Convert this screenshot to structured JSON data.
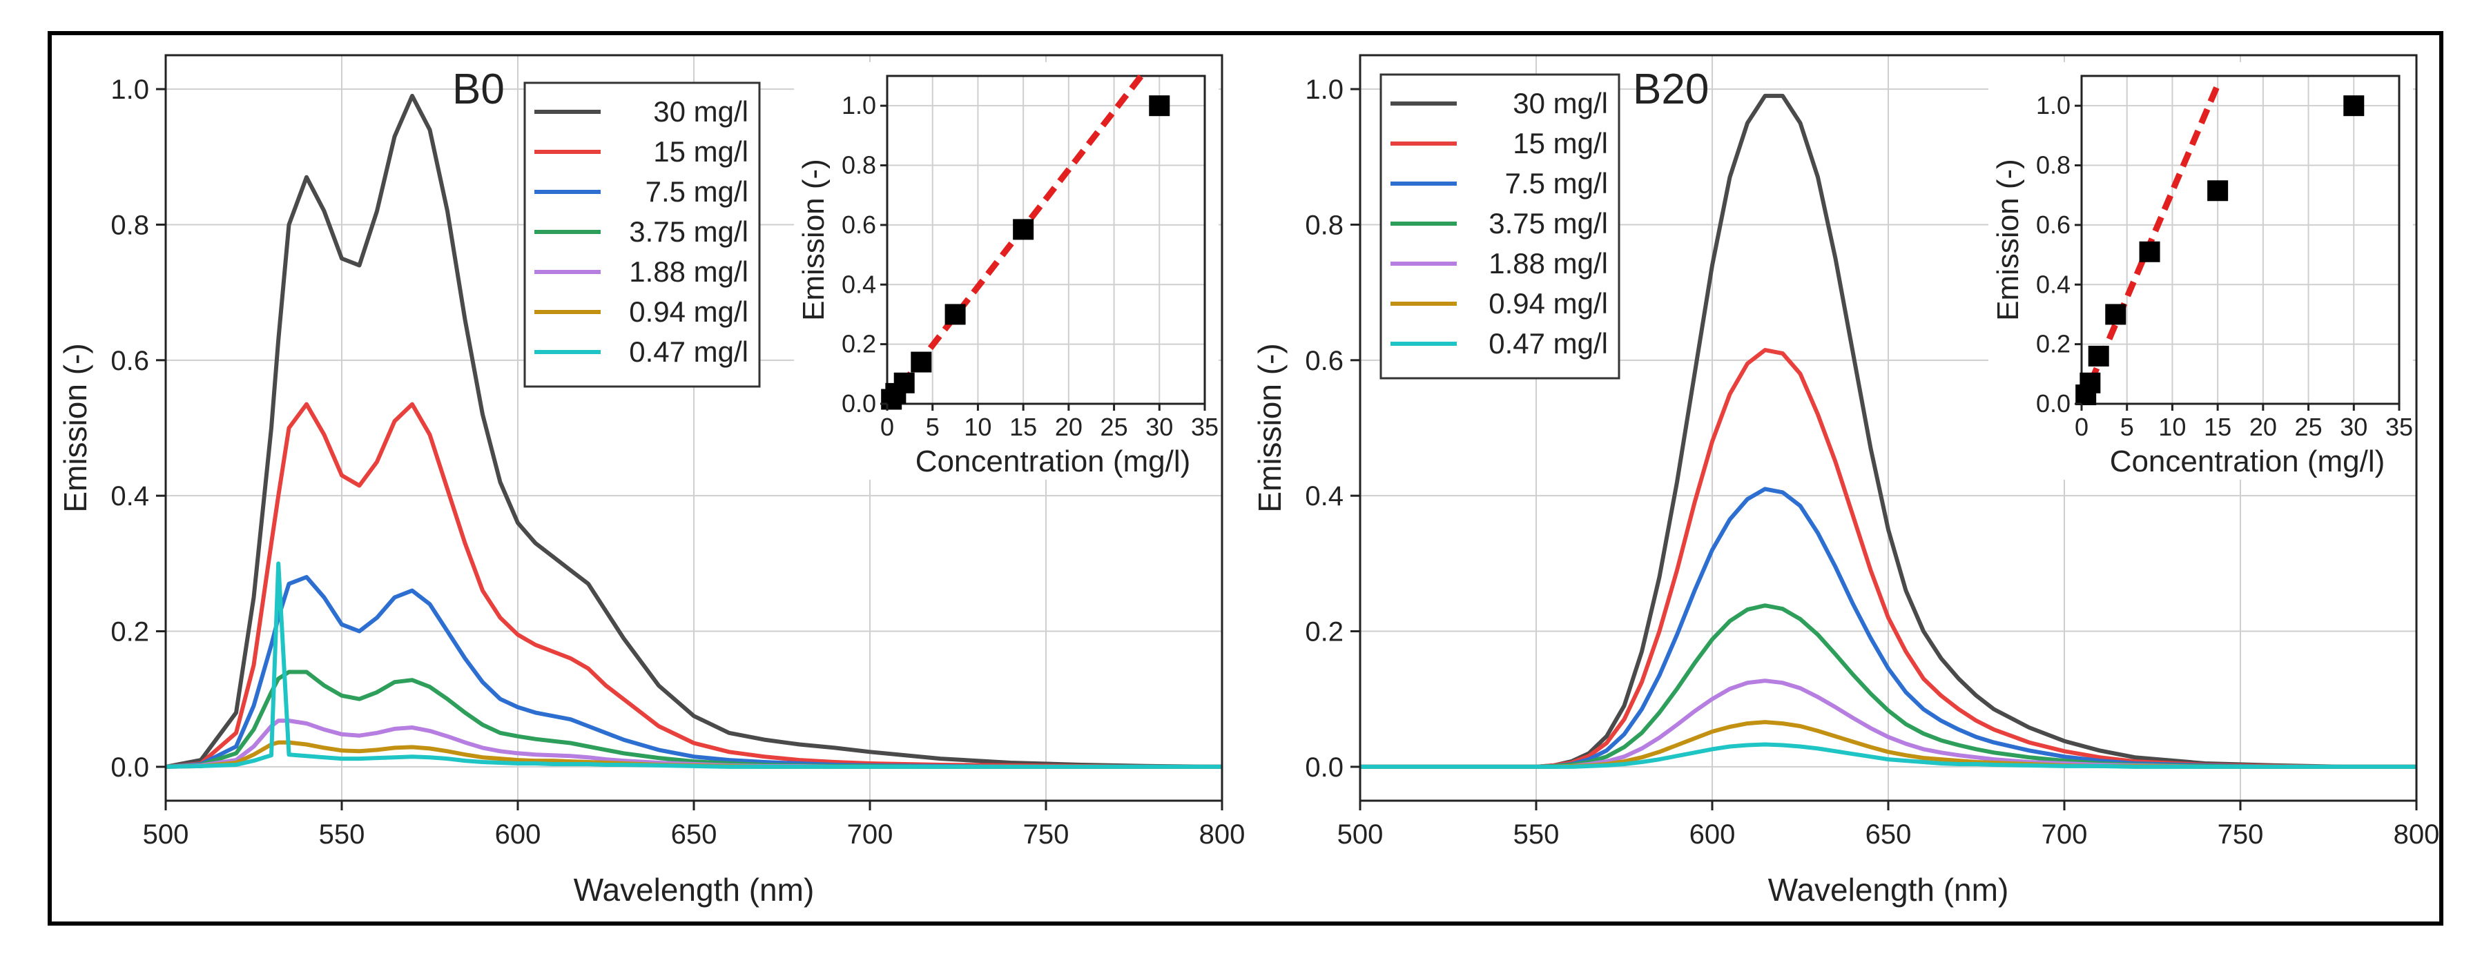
{
  "figure": {
    "colors": {
      "30 mg/l": "#4a4a4a",
      "15 mg/l": "#e8403c",
      "7.5 mg/l": "#2d6fd0",
      "3.75 mg/l": "#2e9e5b",
      "1.88 mg/l": "#b57ee0",
      "0.94 mg/l": "#c39112",
      "0.47 mg/l": "#1fc4c4",
      "fit": "#e32020",
      "grid": "#cfcfcf"
    }
  },
  "chart_data": [
    {
      "id": "B0",
      "type": "line",
      "panel_label": "B0",
      "title": "",
      "xlabel": "Wavelength (nm)",
      "ylabel": "Emission (-)",
      "xlim": [
        500,
        800
      ],
      "ylim": [
        -0.05,
        1.05
      ],
      "xticks": [
        500,
        550,
        600,
        650,
        700,
        750,
        800
      ],
      "yticks": [
        0.0,
        0.2,
        0.4,
        0.6,
        0.8,
        1.0
      ],
      "ytick_labels": [
        "0.0",
        "0.2",
        "0.4",
        "0.6",
        "0.8",
        "1.0"
      ],
      "grid": true,
      "legend": "top-center",
      "x": [
        500,
        510,
        520,
        525,
        530,
        532,
        535,
        540,
        545,
        550,
        555,
        560,
        565,
        570,
        575,
        580,
        585,
        590,
        595,
        600,
        605,
        610,
        615,
        620,
        625,
        630,
        640,
        650,
        660,
        670,
        680,
        690,
        700,
        720,
        740,
        760,
        780,
        800
      ],
      "series": [
        {
          "name": "30 mg/l",
          "values": [
            0.0,
            0.01,
            0.08,
            0.25,
            0.5,
            0.63,
            0.8,
            0.87,
            0.82,
            0.75,
            0.74,
            0.82,
            0.93,
            0.99,
            0.94,
            0.82,
            0.66,
            0.52,
            0.42,
            0.36,
            0.33,
            0.31,
            0.29,
            0.27,
            0.23,
            0.19,
            0.12,
            0.075,
            0.05,
            0.04,
            0.033,
            0.028,
            0.022,
            0.012,
            0.006,
            0.003,
            0.001,
            0.0
          ]
        },
        {
          "name": "15 mg/l",
          "values": [
            0.0,
            0.005,
            0.05,
            0.15,
            0.33,
            0.4,
            0.5,
            0.535,
            0.49,
            0.43,
            0.415,
            0.45,
            0.51,
            0.535,
            0.49,
            0.41,
            0.33,
            0.26,
            0.22,
            0.195,
            0.18,
            0.17,
            0.16,
            0.145,
            0.12,
            0.1,
            0.06,
            0.035,
            0.022,
            0.015,
            0.01,
            0.007,
            0.005,
            0.003,
            0.002,
            0.001,
            0.0,
            0.0
          ]
        },
        {
          "name": "7.5 mg/l",
          "values": [
            0.0,
            0.004,
            0.03,
            0.09,
            0.18,
            0.22,
            0.27,
            0.28,
            0.25,
            0.21,
            0.2,
            0.22,
            0.25,
            0.26,
            0.24,
            0.2,
            0.16,
            0.125,
            0.1,
            0.088,
            0.08,
            0.075,
            0.07,
            0.06,
            0.05,
            0.04,
            0.025,
            0.015,
            0.01,
            0.007,
            0.005,
            0.003,
            0.002,
            0.001,
            0.0,
            0.0,
            0.0,
            0.0
          ]
        },
        {
          "name": "3.75 mg/l",
          "values": [
            0.0,
            0.003,
            0.02,
            0.055,
            0.11,
            0.13,
            0.14,
            0.14,
            0.12,
            0.105,
            0.1,
            0.11,
            0.125,
            0.128,
            0.118,
            0.1,
            0.08,
            0.062,
            0.05,
            0.045,
            0.041,
            0.038,
            0.035,
            0.03,
            0.025,
            0.02,
            0.013,
            0.008,
            0.005,
            0.003,
            0.002,
            0.001,
            0.001,
            0.0,
            0.0,
            0.0,
            0.0,
            0.0
          ]
        },
        {
          "name": "1.88 mg/l",
          "values": [
            0.0,
            0.002,
            0.01,
            0.03,
            0.06,
            0.068,
            0.068,
            0.064,
            0.055,
            0.048,
            0.046,
            0.05,
            0.056,
            0.058,
            0.053,
            0.045,
            0.036,
            0.028,
            0.023,
            0.02,
            0.018,
            0.017,
            0.016,
            0.014,
            0.011,
            0.009,
            0.006,
            0.004,
            0.002,
            0.001,
            0.001,
            0.0,
            0.0,
            0.0,
            0.0,
            0.0,
            0.0,
            0.0
          ]
        },
        {
          "name": "0.94 mg/l",
          "values": [
            0.0,
            0.001,
            0.006,
            0.018,
            0.033,
            0.036,
            0.036,
            0.033,
            0.028,
            0.024,
            0.023,
            0.025,
            0.028,
            0.029,
            0.027,
            0.023,
            0.018,
            0.014,
            0.012,
            0.01,
            0.009,
            0.009,
            0.008,
            0.007,
            0.006,
            0.005,
            0.003,
            0.002,
            0.001,
            0.0,
            0.0,
            0.0,
            0.0,
            0.0,
            0.0,
            0.0,
            0.0,
            0.0
          ]
        },
        {
          "name": "0.47 mg/l",
          "values": [
            0.0,
            0.001,
            0.003,
            0.009,
            0.017,
            0.3,
            0.018,
            0.016,
            0.014,
            0.012,
            0.012,
            0.013,
            0.014,
            0.015,
            0.014,
            0.012,
            0.009,
            0.007,
            0.006,
            0.005,
            0.005,
            0.004,
            0.004,
            0.004,
            0.003,
            0.003,
            0.002,
            0.001,
            0.0,
            0.0,
            0.0,
            0.0,
            0.0,
            0.0,
            0.0,
            0.0,
            0.0,
            0.0
          ]
        }
      ],
      "inset": {
        "type": "scatter",
        "xlabel": "Concentration (mg/l)",
        "ylabel": "Emission (-)",
        "xlim": [
          0,
          35
        ],
        "ylim": [
          0.0,
          1.1
        ],
        "xticks": [
          0,
          5,
          10,
          15,
          20,
          25,
          30,
          35
        ],
        "yticks": [
          0.0,
          0.2,
          0.4,
          0.6,
          0.8,
          1.0
        ],
        "ytick_labels": [
          "0.0",
          "0.2",
          "0.4",
          "0.6",
          "0.8",
          "1.0"
        ],
        "points": [
          [
            0.47,
            0.015
          ],
          [
            0.94,
            0.035
          ],
          [
            1.88,
            0.07
          ],
          [
            3.75,
            0.14
          ],
          [
            7.5,
            0.3
          ],
          [
            15,
            0.585
          ],
          [
            30,
            1.0
          ]
        ],
        "fit": [
          [
            0,
            0.0
          ],
          [
            28,
            1.1
          ]
        ]
      }
    },
    {
      "id": "B20",
      "type": "line",
      "panel_label": "B20",
      "title": "",
      "xlabel": "Wavelength (nm)",
      "ylabel": "Emission (-)",
      "xlim": [
        500,
        800
      ],
      "ylim": [
        -0.05,
        1.05
      ],
      "xticks": [
        500,
        550,
        600,
        650,
        700,
        750,
        800
      ],
      "yticks": [
        0.0,
        0.2,
        0.4,
        0.6,
        0.8,
        1.0
      ],
      "ytick_labels": [
        "0.0",
        "0.2",
        "0.4",
        "0.6",
        "0.8",
        "1.0"
      ],
      "grid": true,
      "legend": "top-left",
      "x": [
        500,
        550,
        555,
        560,
        565,
        570,
        575,
        580,
        585,
        590,
        595,
        600,
        605,
        610,
        615,
        620,
        625,
        630,
        635,
        640,
        645,
        650,
        655,
        660,
        665,
        670,
        675,
        680,
        690,
        700,
        710,
        720,
        740,
        760,
        780,
        800
      ],
      "series": [
        {
          "name": "30 mg/l",
          "values": [
            0.0,
            0.0,
            0.002,
            0.008,
            0.02,
            0.045,
            0.09,
            0.17,
            0.28,
            0.42,
            0.58,
            0.74,
            0.87,
            0.95,
            0.99,
            0.99,
            0.95,
            0.87,
            0.75,
            0.61,
            0.47,
            0.35,
            0.26,
            0.2,
            0.16,
            0.13,
            0.105,
            0.085,
            0.058,
            0.038,
            0.024,
            0.014,
            0.005,
            0.002,
            0.0,
            0.0
          ]
        },
        {
          "name": "15 mg/l",
          "values": [
            0.0,
            0.0,
            0.002,
            0.006,
            0.016,
            0.035,
            0.07,
            0.125,
            0.2,
            0.29,
            0.39,
            0.48,
            0.55,
            0.595,
            0.615,
            0.61,
            0.58,
            0.52,
            0.45,
            0.37,
            0.29,
            0.22,
            0.17,
            0.13,
            0.105,
            0.085,
            0.068,
            0.055,
            0.036,
            0.023,
            0.014,
            0.008,
            0.003,
            0.001,
            0.0,
            0.0
          ]
        },
        {
          "name": "7.5 mg/l",
          "values": [
            0.0,
            0.0,
            0.001,
            0.004,
            0.011,
            0.024,
            0.048,
            0.085,
            0.135,
            0.195,
            0.26,
            0.32,
            0.365,
            0.395,
            0.41,
            0.405,
            0.385,
            0.345,
            0.295,
            0.24,
            0.19,
            0.145,
            0.11,
            0.085,
            0.068,
            0.055,
            0.044,
            0.036,
            0.024,
            0.015,
            0.009,
            0.005,
            0.002,
            0.0,
            0.0,
            0.0
          ]
        },
        {
          "name": "3.75 mg/l",
          "values": [
            0.0,
            0.0,
            0.001,
            0.003,
            0.007,
            0.015,
            0.029,
            0.05,
            0.08,
            0.115,
            0.153,
            0.188,
            0.215,
            0.232,
            0.238,
            0.233,
            0.218,
            0.195,
            0.166,
            0.136,
            0.108,
            0.083,
            0.063,
            0.049,
            0.039,
            0.032,
            0.026,
            0.021,
            0.014,
            0.009,
            0.005,
            0.003,
            0.001,
            0.0,
            0.0,
            0.0
          ]
        },
        {
          "name": "1.88 mg/l",
          "values": [
            0.0,
            0.0,
            0.0,
            0.001,
            0.004,
            0.008,
            0.015,
            0.027,
            0.043,
            0.062,
            0.082,
            0.1,
            0.115,
            0.124,
            0.127,
            0.124,
            0.116,
            0.103,
            0.088,
            0.072,
            0.057,
            0.044,
            0.034,
            0.026,
            0.021,
            0.017,
            0.014,
            0.011,
            0.007,
            0.005,
            0.003,
            0.002,
            0.0,
            0.0,
            0.0,
            0.0
          ]
        },
        {
          "name": "0.94 mg/l",
          "values": [
            0.0,
            0.0,
            0.0,
            0.001,
            0.002,
            0.004,
            0.008,
            0.014,
            0.022,
            0.032,
            0.042,
            0.052,
            0.059,
            0.064,
            0.066,
            0.064,
            0.06,
            0.053,
            0.045,
            0.037,
            0.029,
            0.022,
            0.017,
            0.013,
            0.011,
            0.009,
            0.007,
            0.006,
            0.004,
            0.002,
            0.001,
            0.001,
            0.0,
            0.0,
            0.0,
            0.0
          ]
        },
        {
          "name": "0.47 mg/l",
          "values": [
            0.0,
            0.0,
            0.0,
            0.0,
            0.001,
            0.002,
            0.004,
            0.007,
            0.011,
            0.016,
            0.021,
            0.026,
            0.03,
            0.032,
            0.033,
            0.032,
            0.03,
            0.027,
            0.023,
            0.019,
            0.015,
            0.011,
            0.009,
            0.007,
            0.005,
            0.004,
            0.004,
            0.003,
            0.002,
            0.001,
            0.001,
            0.0,
            0.0,
            0.0,
            0.0,
            0.0
          ]
        }
      ],
      "inset": {
        "type": "scatter",
        "xlabel": "Concentration (mg/l)",
        "ylabel": "Emission (-)",
        "xlim": [
          0,
          35
        ],
        "ylim": [
          0.0,
          1.1
        ],
        "xticks": [
          0,
          5,
          10,
          15,
          20,
          25,
          30,
          35
        ],
        "yticks": [
          0.0,
          0.2,
          0.4,
          0.6,
          0.8,
          1.0
        ],
        "ytick_labels": [
          "0.0",
          "0.2",
          "0.4",
          "0.6",
          "0.8",
          "1.0"
        ],
        "points": [
          [
            0.47,
            0.03
          ],
          [
            0.94,
            0.07
          ],
          [
            1.88,
            0.16
          ],
          [
            3.75,
            0.3
          ],
          [
            7.5,
            0.51
          ],
          [
            15,
            0.715
          ],
          [
            30,
            1.0
          ]
        ],
        "fit": [
          [
            0,
            0.0
          ],
          [
            15,
            1.07
          ]
        ]
      }
    }
  ]
}
